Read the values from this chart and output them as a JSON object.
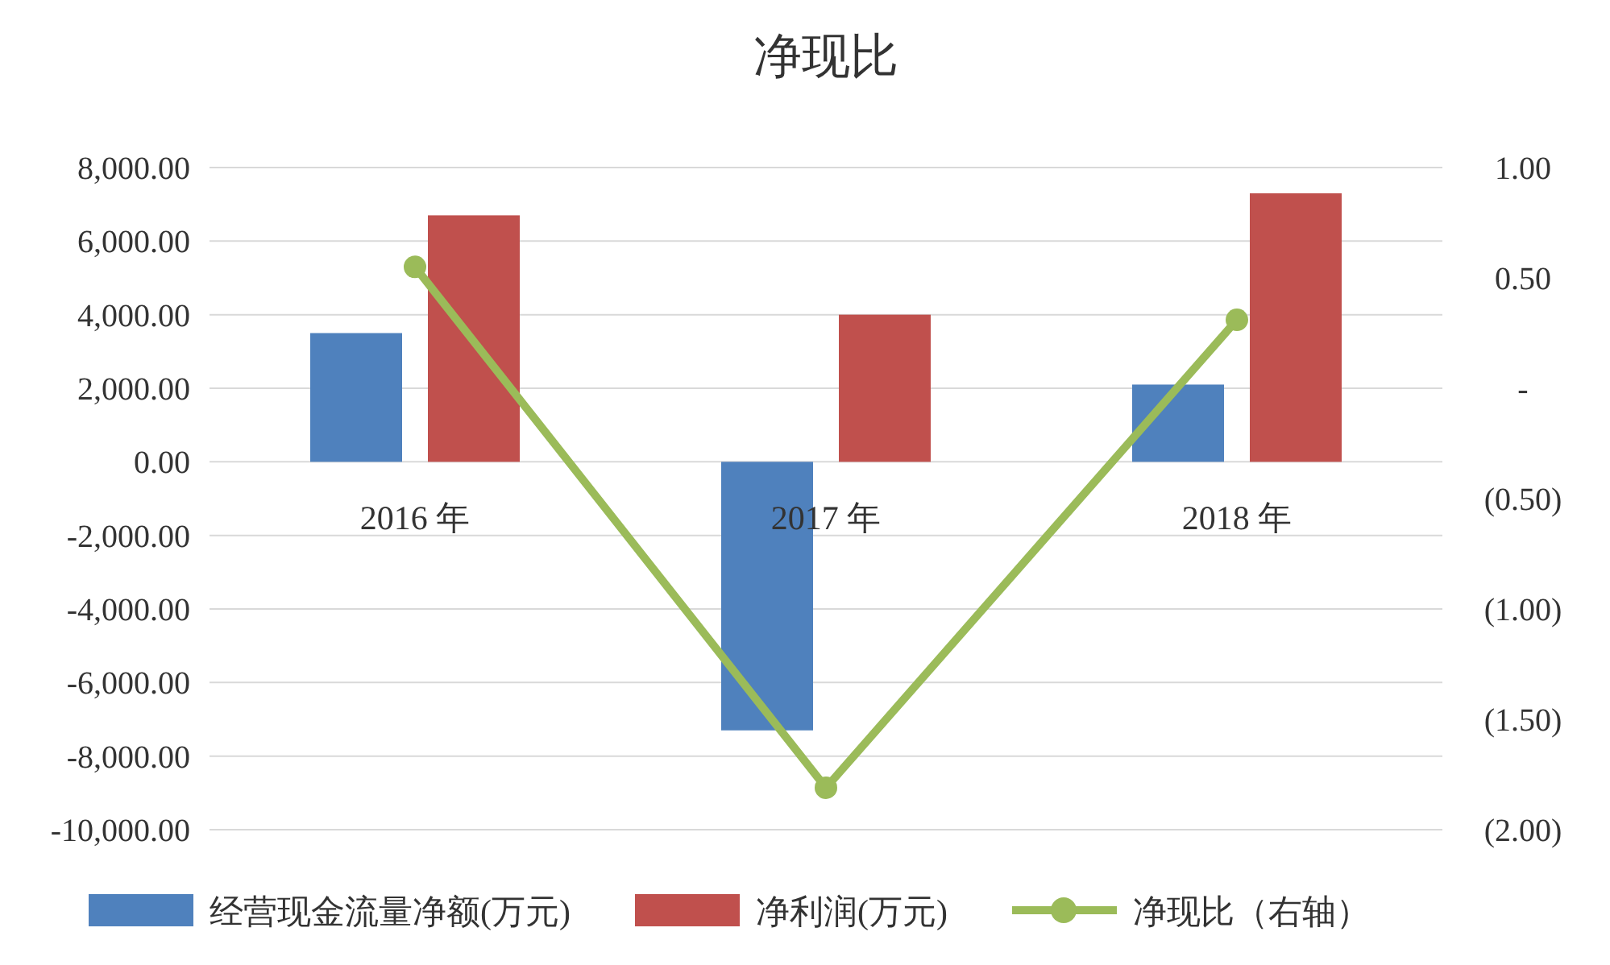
{
  "chart_data": {
    "type": "bar",
    "title": "净现比",
    "categories": [
      "2016 年",
      "2017 年",
      "2018 年"
    ],
    "series": [
      {
        "name": "经营现金流量净额(万元)",
        "color": "#4f81bd",
        "values": [
          3500,
          -7300,
          2100
        ]
      },
      {
        "name": "净利润(万元)",
        "color": "#c0504d",
        "values": [
          6700,
          4000,
          7300
        ]
      },
      {
        "name": "净现比（右轴）",
        "color": "#9bbb59",
        "type": "line",
        "axis": "y2",
        "marker": "circle",
        "values": [
          0.55,
          -1.81,
          0.31
        ]
      }
    ],
    "ylim": [
      -10000,
      8000
    ],
    "yticks": [
      {
        "value": -10000,
        "label": "-10,000.00"
      },
      {
        "value": -8000,
        "label": "-8,000.00"
      },
      {
        "value": -6000,
        "label": "-6,000.00"
      },
      {
        "value": -4000,
        "label": "-4,000.00"
      },
      {
        "value": -2000,
        "label": "-2,000.00"
      },
      {
        "value": 0,
        "label": "0.00"
      },
      {
        "value": 2000,
        "label": "2,000.00"
      },
      {
        "value": 4000,
        "label": "4,000.00"
      },
      {
        "value": 6000,
        "label": "6,000.00"
      },
      {
        "value": 8000,
        "label": "8,000.00"
      }
    ],
    "y2lim": [
      -2,
      1
    ],
    "y2ticks": [
      {
        "value": -2,
        "label": "(2.00)"
      },
      {
        "value": -1.5,
        "label": "(1.50)"
      },
      {
        "value": -1,
        "label": "(1.00)"
      },
      {
        "value": -0.5,
        "label": "(0.50)"
      },
      {
        "value": 0,
        "label": "-"
      },
      {
        "value": 0.5,
        "label": "0.50"
      },
      {
        "value": 1,
        "label": "1.00"
      }
    ],
    "grid": "y",
    "legend": "bottom"
  }
}
